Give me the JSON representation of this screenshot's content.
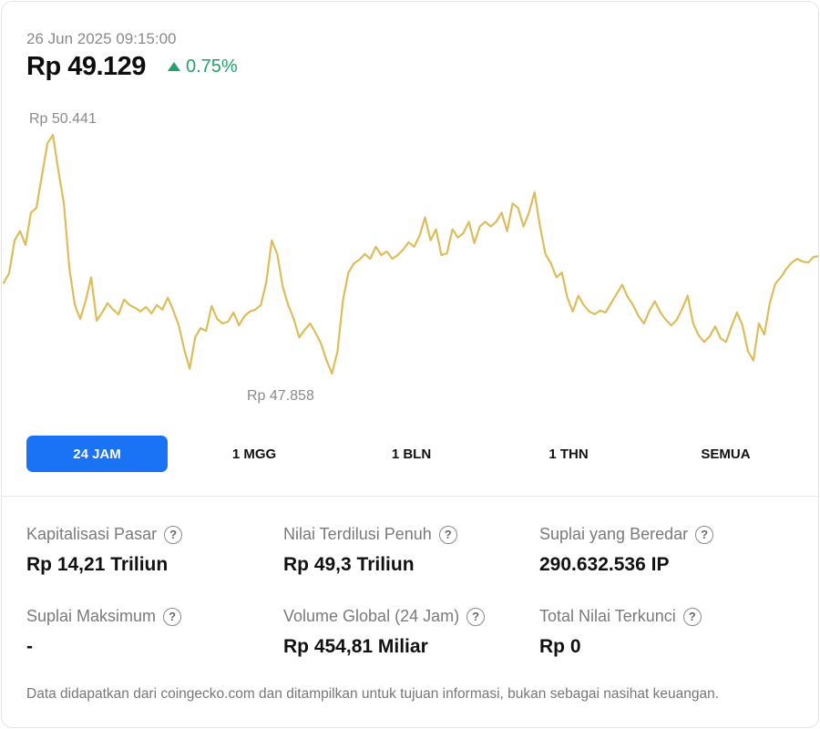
{
  "header": {
    "timestamp": "26 Jun 2025 09:15:00",
    "price": "Rp 49.129",
    "change": "0.75%",
    "change_color": "#26a06b"
  },
  "chart_data": {
    "type": "line",
    "max_label": "Rp 50.441",
    "min_label": "Rp 47.858",
    "y_max": 50441,
    "y_min": 47858,
    "line_color": "#dcbd5a",
    "values": [
      48839,
      48944,
      49300,
      49400,
      49250,
      49600,
      49650,
      50000,
      50350,
      50441,
      50050,
      49700,
      49000,
      48600,
      48450,
      48650,
      48900,
      48430,
      48520,
      48620,
      48550,
      48500,
      48660,
      48600,
      48570,
      48530,
      48580,
      48510,
      48600,
      48550,
      48680,
      48540,
      48380,
      48120,
      47910,
      48250,
      48350,
      48320,
      48590,
      48450,
      48400,
      48420,
      48520,
      48380,
      48480,
      48530,
      48550,
      48600,
      48850,
      49300,
      49150,
      48800,
      48600,
      48450,
      48250,
      48330,
      48400,
      48300,
      48180,
      48000,
      47858,
      48100,
      48650,
      48950,
      49050,
      49090,
      49150,
      49100,
      49230,
      49140,
      49180,
      49100,
      49140,
      49200,
      49280,
      49230,
      49350,
      49550,
      49300,
      49420,
      49140,
      49160,
      49420,
      49330,
      49380,
      49500,
      49270,
      49450,
      49500,
      49450,
      49500,
      49600,
      49400,
      49700,
      49650,
      49450,
      49600,
      49820,
      49450,
      49150,
      49050,
      48900,
      48950,
      48680,
      48530,
      48700,
      48600,
      48530,
      48500,
      48540,
      48520,
      48620,
      48720,
      48820,
      48690,
      48600,
      48480,
      48400,
      48540,
      48640,
      48520,
      48440,
      48380,
      48440,
      48560,
      48700,
      48400,
      48270,
      48200,
      48260,
      48370,
      48240,
      48200,
      48370,
      48520,
      48380,
      48100,
      48000,
      48400,
      48280,
      48620,
      48830,
      48900,
      48990,
      49060,
      49100,
      49070,
      49060,
      49120,
      49129
    ]
  },
  "ranges": [
    {
      "label": "24 JAM",
      "active": true
    },
    {
      "label": "1 MGG",
      "active": false
    },
    {
      "label": "1 BLN",
      "active": false
    },
    {
      "label": "1 THN",
      "active": false
    },
    {
      "label": "SEMUA",
      "active": false
    }
  ],
  "stats": [
    {
      "label": "Kapitalisasi Pasar",
      "value": "Rp 14,21 Triliun"
    },
    {
      "label": "Nilai Terdilusi Penuh",
      "value": "Rp 49,3 Triliun"
    },
    {
      "label": "Suplai yang Beredar",
      "value": "290.632.536 IP"
    },
    {
      "label": "Suplai Maksimum",
      "value": "-"
    },
    {
      "label": "Volume Global (24 Jam)",
      "value": "Rp 454,81 Miliar"
    },
    {
      "label": "Total Nilai Terkunci",
      "value": "Rp 0"
    }
  ],
  "help_icon_glyph": "?",
  "footnote": "Data didapatkan dari coingecko.com dan ditampilkan untuk tujuan informasi, bukan sebagai nasihat keuangan."
}
